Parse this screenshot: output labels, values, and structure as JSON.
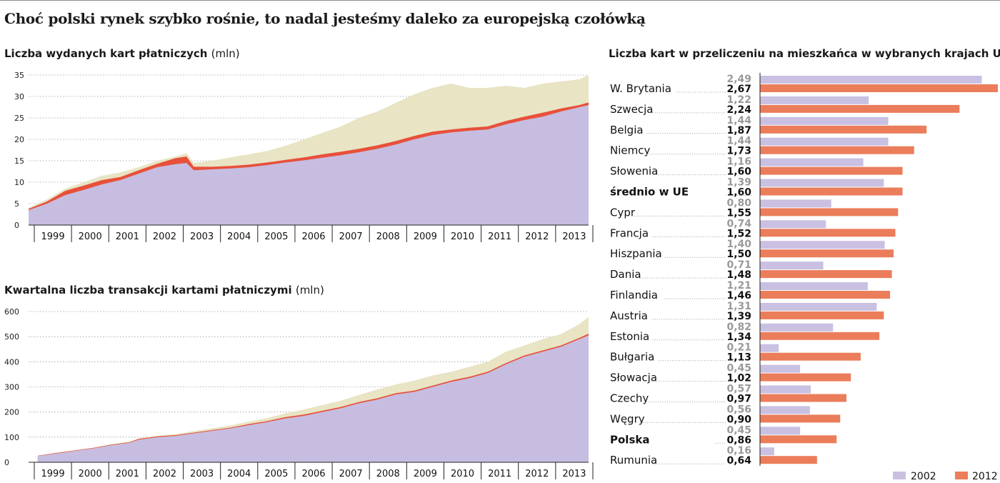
{
  "headline": "Choć polski rynek szybko rośnie, to nadal jesteśmy daleko za europejską czołówką",
  "colors": {
    "purple": "#c7bde0",
    "red": "#e8503a",
    "beige": "#e8e4c4",
    "bar2002": "#c9c0e2",
    "bar2012": "#eb7d5b"
  },
  "chart_data": [
    {
      "type": "area",
      "title": "Liczba wydanych kart płatniczych",
      "unit": "(mln)",
      "ylim": [
        0,
        35
      ],
      "yticks": [
        "0",
        "5",
        "10",
        "15",
        "20",
        "25",
        "30",
        "35"
      ],
      "xlim": [
        1998.0,
        2013.25
      ],
      "categories": [
        "1999",
        "2000",
        "2001",
        "2002",
        "2003",
        "2004",
        "2005",
        "2006",
        "2007",
        "2008",
        "2009",
        "2010",
        "2011",
        "2012",
        "2013"
      ],
      "series": [
        {
          "x": [
            1998.0,
            1998.5,
            1999.0,
            1999.5,
            2000.0,
            2000.5,
            2001.0,
            2001.5,
            2002.0,
            2002.3,
            2002.5,
            2003.0,
            2003.5,
            2004.0,
            2004.5,
            2005.0,
            2005.5,
            2006.0,
            2006.5,
            2007.0,
            2007.5,
            2008.0,
            2008.5,
            2009.0,
            2009.5,
            2010.0,
            2010.5,
            2011.0,
            2011.5,
            2012.0,
            2012.5,
            2013.0,
            2013.25
          ],
          "values": [
            3.5,
            5.0,
            7.0,
            8.2,
            9.5,
            10.5,
            12.0,
            13.5,
            14.2,
            14.5,
            12.8,
            13.0,
            13.2,
            13.5,
            14.0,
            14.6,
            15.1,
            15.7,
            16.3,
            17.0,
            17.8,
            18.8,
            20.0,
            21.0,
            21.6,
            22.0,
            22.3,
            23.5,
            24.5,
            25.3,
            26.5,
            27.5,
            28.0
          ]
        },
        {
          "x": [
            1998.0,
            1998.5,
            1999.0,
            1999.5,
            2000.0,
            2000.5,
            2001.0,
            2001.5,
            2002.0,
            2002.3,
            2002.5,
            2003.0,
            2003.5,
            2004.0,
            2004.5,
            2005.0,
            2005.5,
            2006.0,
            2006.5,
            2007.0,
            2007.5,
            2008.0,
            2008.5,
            2009.0,
            2009.5,
            2010.0,
            2010.5,
            2011.0,
            2011.5,
            2012.0,
            2012.5,
            2013.0,
            2013.25
          ],
          "values": [
            3.8,
            5.5,
            8.0,
            9.2,
            10.5,
            11.2,
            12.8,
            14.3,
            15.6,
            16.0,
            13.6,
            13.6,
            13.8,
            14.1,
            14.6,
            15.2,
            15.8,
            16.5,
            17.1,
            17.8,
            18.6,
            19.6,
            20.8,
            21.8,
            22.3,
            22.7,
            23.0,
            24.3,
            25.3,
            26.2,
            27.2,
            28.0,
            28.6
          ]
        },
        {
          "x": [
            1998.0,
            1998.5,
            1999.0,
            1999.5,
            2000.0,
            2000.5,
            2001.0,
            2001.5,
            2002.0,
            2002.3,
            2002.5,
            2003.0,
            2003.5,
            2004.0,
            2004.5,
            2005.0,
            2005.5,
            2006.0,
            2006.5,
            2007.0,
            2007.5,
            2008.0,
            2008.5,
            2009.0,
            2009.5,
            2010.0,
            2010.5,
            2011.0,
            2011.5,
            2012.0,
            2012.5,
            2013.0,
            2013.25
          ],
          "values": [
            4.0,
            6.0,
            8.5,
            10.0,
            11.5,
            12.3,
            13.5,
            15.0,
            16.0,
            16.8,
            14.5,
            15.0,
            15.8,
            16.5,
            17.3,
            18.5,
            20.0,
            21.5,
            23.0,
            25.0,
            26.5,
            28.5,
            30.5,
            32.0,
            33.0,
            32.0,
            32.0,
            32.5,
            32.0,
            33.0,
            33.5,
            34.0,
            35.0
          ]
        }
      ]
    },
    {
      "type": "area",
      "title": "Kwartalna liczba transakcji kartami płatniczymi",
      "unit": "(mln)",
      "ylim": [
        0,
        600
      ],
      "yticks": [
        "0",
        "100",
        "200",
        "300",
        "400",
        "500",
        "600"
      ],
      "xlim": [
        1998.0,
        2013.25
      ],
      "categories": [
        "1999",
        "2000",
        "2001",
        "2002",
        "2003",
        "2004",
        "2005",
        "2006",
        "2007",
        "2008",
        "2009",
        "2010",
        "2011",
        "2012",
        "2013"
      ],
      "series": [
        {
          "x": [
            1998.25,
            1998.75,
            1999.25,
            1999.75,
            2000.25,
            2000.75,
            2001.0,
            2001.5,
            2002.0,
            2002.5,
            2003.0,
            2003.5,
            2004.0,
            2004.5,
            2005.0,
            2005.5,
            2006.0,
            2006.5,
            2007.0,
            2007.5,
            2008.0,
            2008.5,
            2009.0,
            2009.5,
            2010.0,
            2010.5,
            2011.0,
            2011.5,
            2012.0,
            2012.5,
            2013.0,
            2013.25
          ],
          "values": [
            25,
            35,
            45,
            55,
            68,
            78,
            90,
            100,
            105,
            115,
            125,
            135,
            148,
            160,
            175,
            185,
            200,
            215,
            235,
            250,
            270,
            280,
            300,
            320,
            335,
            355,
            390,
            420,
            440,
            460,
            490,
            505
          ]
        },
        {
          "x": [
            1998.25,
            1998.75,
            1999.25,
            1999.75,
            2000.25,
            2000.75,
            2001.0,
            2001.5,
            2002.0,
            2002.5,
            2003.0,
            2003.5,
            2004.0,
            2004.5,
            2005.0,
            2005.5,
            2006.0,
            2006.5,
            2007.0,
            2007.5,
            2008.0,
            2008.5,
            2009.0,
            2009.5,
            2010.0,
            2010.5,
            2011.0,
            2011.5,
            2012.0,
            2012.5,
            2013.0,
            2013.25
          ],
          "values": [
            26,
            37,
            47,
            57,
            70,
            80,
            93,
            103,
            108,
            118,
            128,
            138,
            152,
            164,
            180,
            190,
            205,
            220,
            240,
            255,
            275,
            285,
            305,
            325,
            340,
            360,
            395,
            425,
            445,
            465,
            495,
            512
          ]
        },
        {
          "x": [
            1998.25,
            1998.75,
            1999.25,
            1999.75,
            2000.25,
            2000.75,
            2001.0,
            2001.5,
            2002.0,
            2002.5,
            2003.0,
            2003.5,
            2004.0,
            2004.5,
            2005.0,
            2005.5,
            2006.0,
            2006.5,
            2007.0,
            2007.5,
            2008.0,
            2008.5,
            2009.0,
            2009.5,
            2010.0,
            2010.5,
            2011.0,
            2011.5,
            2012.0,
            2012.5,
            2013.0,
            2013.25
          ],
          "values": [
            27,
            38,
            48,
            58,
            72,
            82,
            95,
            106,
            112,
            124,
            135,
            147,
            162,
            176,
            195,
            210,
            228,
            245,
            268,
            290,
            310,
            325,
            345,
            360,
            380,
            400,
            440,
            465,
            490,
            510,
            550,
            578
          ]
        }
      ]
    },
    {
      "type": "bar",
      "title": "Liczba kart w przeliczeniu na mieszkańca w wybranych krajach UE",
      "categories": [
        "W. Brytania",
        "Szwecja",
        "Belgia",
        "Niemcy",
        "Słowenia",
        "średnio w UE",
        "Cypr",
        "Francja",
        "Hiszpania",
        "Dania",
        "Finlandia",
        "Austria",
        "Estonia",
        "Bułgaria",
        "Słowacja",
        "Czechy",
        "Węgry",
        "Polska",
        "Rumunia"
      ],
      "highlight": [
        "średnio w UE",
        "Polska"
      ],
      "xlim": [
        0,
        2.67
      ],
      "legend_position": "bottom-right",
      "series": [
        {
          "name": "2002",
          "labels": [
            "2,49",
            "1,22",
            "1,44",
            "1,44",
            "1,16",
            "1,39",
            "0,80",
            "0,74",
            "1,40",
            "0,71",
            "1,21",
            "1,31",
            "0,82",
            "0,21",
            "0,45",
            "0,57",
            "0,56",
            "0,45",
            "0,16"
          ],
          "values": [
            2.49,
            1.22,
            1.44,
            1.44,
            1.16,
            1.39,
            0.8,
            0.74,
            1.4,
            0.71,
            1.21,
            1.31,
            0.82,
            0.21,
            0.45,
            0.57,
            0.56,
            0.45,
            0.16
          ]
        },
        {
          "name": "2012",
          "labels": [
            "2,67",
            "2,24",
            "1,87",
            "1,73",
            "1,60",
            "1,60",
            "1,55",
            "1,52",
            "1,50",
            "1,48",
            "1,46",
            "1,39",
            "1,34",
            "1,13",
            "1,02",
            "0,97",
            "0,90",
            "0,86",
            "0,64"
          ],
          "values": [
            2.67,
            2.24,
            1.87,
            1.73,
            1.6,
            1.6,
            1.55,
            1.52,
            1.5,
            1.48,
            1.46,
            1.39,
            1.34,
            1.13,
            1.02,
            0.97,
            0.9,
            0.86,
            0.64
          ]
        }
      ]
    }
  ]
}
